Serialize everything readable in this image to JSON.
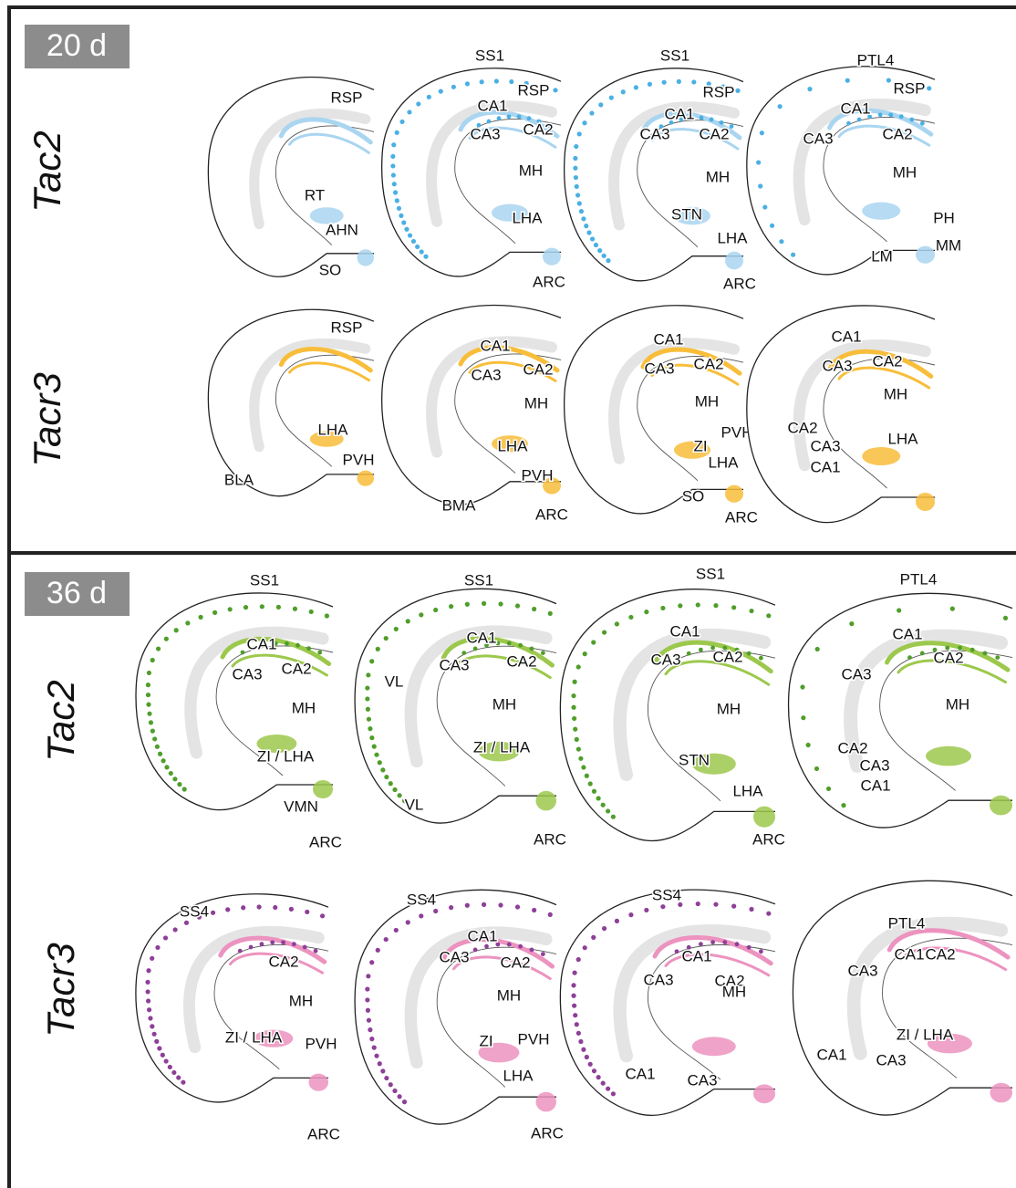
{
  "panels": [
    {
      "age": "20 d",
      "rows": [
        {
          "gene": "Tac2",
          "sections": [
            {
              "labels": [
                "RSP",
                "RT",
                "AHN",
                "SO"
              ]
            },
            {
              "labels": [
                "SS1",
                "RSP",
                "CA1",
                "CA3",
                "CA2",
                "MH",
                "LHA",
                "ARC"
              ]
            },
            {
              "labels": [
                "SS1",
                "RSP",
                "CA1",
                "CA3",
                "CA2",
                "MH",
                "STN",
                "LHA",
                "ARC"
              ]
            },
            {
              "labels": [
                "PTL4",
                "RSP",
                "CA1",
                "CA3",
                "CA2",
                "MH",
                "PH",
                "LM",
                "MM"
              ]
            }
          ]
        },
        {
          "gene": "Tacr3",
          "sections": [
            {
              "labels": [
                "RSP",
                "LHA",
                "PVH",
                "BLA"
              ]
            },
            {
              "labels": [
                "CA1",
                "CA3",
                "CA2",
                "MH",
                "LHA",
                "PVH",
                "BMA",
                "ARC"
              ]
            },
            {
              "labels": [
                "CA1",
                "CA3",
                "CA2",
                "MH",
                "ZI",
                "PVH",
                "LHA",
                "SO",
                "ARC"
              ]
            },
            {
              "labels": [
                "CA1",
                "CA3",
                "CA2",
                "MH",
                "CA2",
                "CA3",
                "CA1",
                "LHA"
              ]
            }
          ]
        }
      ]
    },
    {
      "age": "36 d",
      "rows": [
        {
          "gene": "Tac2",
          "sections": [
            {
              "labels": [
                "SS1",
                "CA1",
                "CA3",
                "CA2",
                "MH",
                "ZI / LHA",
                "VMN",
                "ARC"
              ]
            },
            {
              "labels": [
                "SS1",
                "CA1",
                "CA3",
                "CA2",
                "VL",
                "MH",
                "ZI / LHA",
                "VL",
                "ARC"
              ]
            },
            {
              "labels": [
                "SS1",
                "CA1",
                "CA3",
                "CA2",
                "MH",
                "STN",
                "LHA",
                "ARC"
              ]
            },
            {
              "labels": [
                "PTL4",
                "CA1",
                "CA3",
                "CA2",
                "MH",
                "CA2",
                "CA3",
                "CA1"
              ]
            }
          ]
        },
        {
          "gene": "Tacr3",
          "sections": [
            {
              "labels": [
                "SS4",
                "CA2",
                "MH",
                "ZI / LHA",
                "PVH",
                "ARC"
              ]
            },
            {
              "labels": [
                "SS4",
                "CA1",
                "CA3",
                "CA2",
                "MH",
                "ZI",
                "PVH",
                "LHA",
                "ARC"
              ]
            },
            {
              "labels": [
                "SS4",
                "CA1",
                "CA3",
                "CA2",
                "MH",
                "CA1",
                "CA3"
              ]
            },
            {
              "labels": [
                "PTL4",
                "CA1",
                "CA3",
                "CA2",
                "ZI / LHA",
                "CA1",
                "CA3"
              ]
            }
          ]
        }
      ]
    }
  ]
}
